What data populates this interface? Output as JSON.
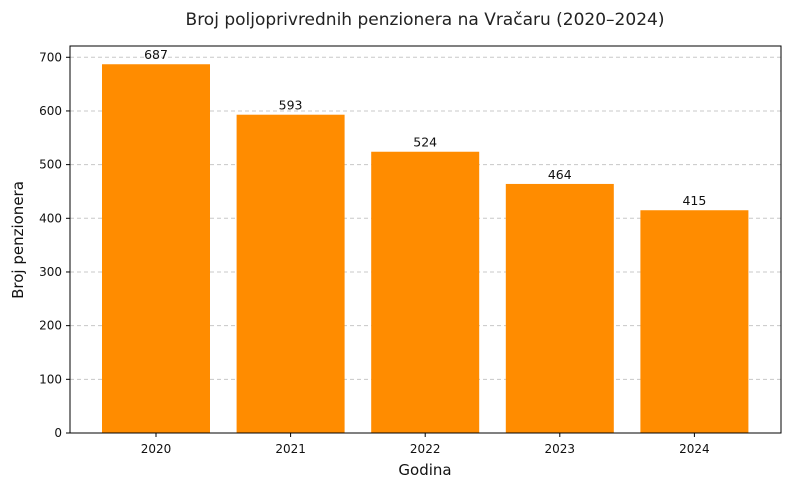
{
  "chart_data": {
    "type": "bar",
    "title": "Broj poljoprivrednih penzionera na Vračaru (2020–2024)",
    "xlabel": "Godina",
    "ylabel": "Broj penzionera",
    "categories": [
      "2020",
      "2021",
      "2022",
      "2023",
      "2024"
    ],
    "values": [
      687,
      593,
      524,
      464,
      415
    ],
    "value_labels": [
      "687",
      "593",
      "524",
      "464",
      "415"
    ],
    "yticks": [
      0,
      100,
      200,
      300,
      400,
      500,
      600,
      700
    ],
    "ytick_labels": [
      "0",
      "100",
      "200",
      "300",
      "400",
      "500",
      "600",
      "700"
    ],
    "ylim": [
      0,
      721
    ],
    "grid": "horizontal-dashed",
    "bar_color": "#ff8c00",
    "grid_color": "#c8c8c8"
  }
}
